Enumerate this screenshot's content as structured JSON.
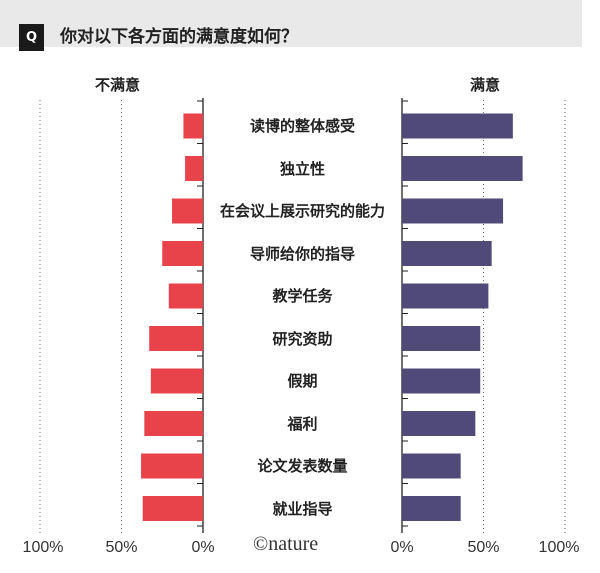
{
  "header": {
    "badge": "Q",
    "question": "你对以下各方面的满意度如何？"
  },
  "credit": "©nature",
  "colors": {
    "dissatisfied": "#e8434b",
    "satisfied": "#4f4a78"
  },
  "chart_data": {
    "type": "bar",
    "orientation": "horizontal-diverging",
    "categories": [
      "读博的整体感受",
      "独立性",
      "在会议上展示研究的能力",
      "导师给你的指导",
      "教学任务",
      "研究资助",
      "假期",
      "福利",
      "论文发表数量",
      "就业指导"
    ],
    "series": [
      {
        "name": "不满意",
        "values": [
          12,
          11,
          19,
          25,
          21,
          33,
          32,
          36,
          38,
          37
        ]
      },
      {
        "name": "满意",
        "values": [
          68,
          74,
          62,
          55,
          53,
          48,
          48,
          45,
          36,
          36
        ]
      }
    ],
    "left_ticks": [
      "100%",
      "50%",
      "0%"
    ],
    "right_ticks": [
      "0%",
      "50%",
      "100%"
    ],
    "xlim": [
      0,
      100
    ],
    "grid": "dotted-vertical"
  }
}
